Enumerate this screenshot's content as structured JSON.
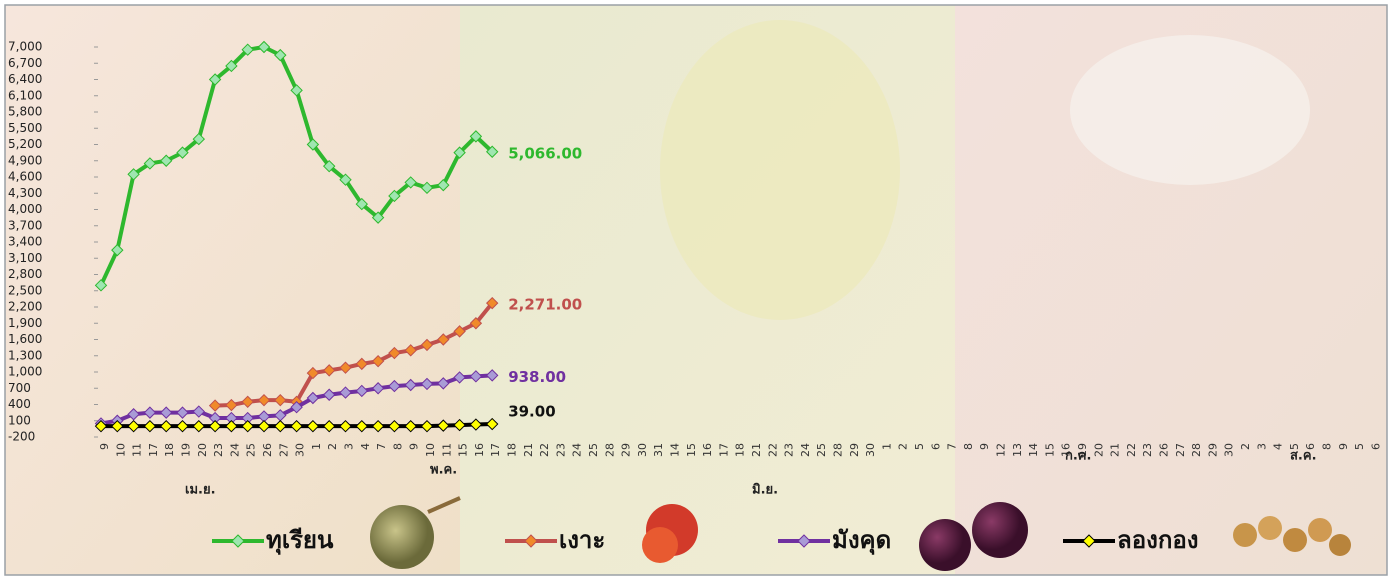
{
  "chart_data": {
    "type": "line",
    "categories": [
      "9",
      "10",
      "11",
      "17",
      "18",
      "19",
      "20",
      "23",
      "24",
      "25",
      "26",
      "27",
      "30",
      "1",
      "2",
      "3",
      "4",
      "7",
      "8",
      "9",
      "10",
      "11",
      "15",
      "16",
      "17",
      "18",
      "21",
      "22",
      "23",
      "24",
      "25",
      "28",
      "29",
      "30",
      "31",
      "14",
      "15",
      "16",
      "17",
      "18",
      "21",
      "22",
      "23",
      "24",
      "25",
      "28",
      "29",
      "30",
      "1",
      "2",
      "5",
      "6",
      "7",
      "8",
      "9",
      "12",
      "13",
      "14",
      "15",
      "16",
      "19",
      "20",
      "21",
      "22",
      "23",
      "26",
      "27",
      "28",
      "29",
      "30",
      "2",
      "3",
      "4",
      "5",
      "6",
      "8",
      "9",
      "5",
      "6"
    ],
    "period_labels": [
      "เม.ย.",
      "พ.ค.",
      "มิ.ย.",
      "ก.ค.",
      "ส.ค."
    ],
    "ylim": [
      -200,
      7000
    ],
    "yticks": [
      -200,
      100,
      400,
      700,
      {
        "value": 1000,
        "label": "1,000"
      },
      {
        "value": 1300,
        "label": "1,300"
      },
      {
        "value": 1600,
        "label": "1,600"
      },
      {
        "value": 1900,
        "label": "1,900"
      },
      {
        "value": 2200,
        "label": "2,200"
      },
      {
        "value": 2500,
        "label": "2,500"
      },
      {
        "value": 2800,
        "label": "2,800"
      },
      {
        "value": 3100,
        "label": "3,100"
      },
      {
        "value": 3400,
        "label": "3,400"
      },
      {
        "value": 3700,
        "label": "3,700"
      },
      {
        "value": 4000,
        "label": "4,000"
      },
      {
        "value": 4300,
        "label": "4,300"
      },
      {
        "value": 4600,
        "label": "4,600"
      },
      {
        "value": 4900,
        "label": "4,900"
      },
      {
        "value": 5200,
        "label": "5,200"
      },
      {
        "value": 5500,
        "label": "5,500"
      },
      {
        "value": 5800,
        "label": "5,800"
      },
      {
        "value": 6100,
        "label": "6,100"
      },
      {
        "value": 6400,
        "label": "6,400"
      },
      {
        "value": 6700,
        "label": "6,700"
      },
      {
        "value": 7000,
        "label": "7,000"
      }
    ],
    "series": [
      {
        "name": "ทุเรียน",
        "color": "#2eb82e",
        "marker_color": "#9fe6b0",
        "values": [
          2600,
          3250,
          4650,
          4850,
          4900,
          5050,
          5300,
          6400,
          6650,
          6950,
          7000,
          6850,
          6200,
          5200,
          4800,
          4550,
          4100,
          3850,
          4250,
          4500,
          4400,
          4450,
          5050,
          5350,
          5066,
          null,
          null,
          null,
          null,
          null,
          null,
          null,
          null,
          null,
          null,
          null,
          null,
          null,
          null,
          null,
          null,
          null,
          null,
          null,
          null,
          null,
          null,
          null,
          null,
          null,
          null,
          null,
          null,
          null,
          null,
          null,
          null,
          null,
          null,
          null,
          null,
          null,
          null,
          null,
          null,
          null,
          null,
          null,
          null,
          null,
          null,
          null,
          null,
          null,
          null,
          null,
          null,
          null,
          null
        ],
        "value_labels": [
          null,
          null,
          null,
          null,
          null,
          null,
          null,
          null,
          null,
          null,
          null,
          null,
          null,
          null,
          null,
          null,
          null,
          null,
          null,
          null,
          null,
          null,
          null,
          null,
          "5,066.00",
          null,
          null,
          null,
          null,
          null,
          null,
          null,
          null,
          null,
          null,
          null,
          null,
          null,
          null,
          null,
          null,
          null,
          null,
          null,
          null,
          null,
          null,
          null,
          null,
          null,
          null,
          null,
          null,
          null,
          null,
          null,
          null,
          null,
          null,
          null,
          null,
          null,
          null,
          null,
          null,
          null,
          null,
          null,
          null,
          null,
          null,
          null,
          null,
          null,
          null,
          null,
          null,
          null,
          null
        ]
      },
      {
        "name": "เงาะ",
        "color": "#c0504d",
        "marker_color": "#f08a2a",
        "values": [
          null,
          null,
          null,
          null,
          null,
          null,
          null,
          380,
          390,
          450,
          480,
          480,
          450,
          980,
          1030,
          1080,
          1150,
          1200,
          1350,
          1400,
          1500,
          1600,
          1750,
          1900,
          2271,
          null,
          null,
          null,
          null,
          null,
          null,
          null,
          null,
          null,
          null,
          null,
          null,
          null,
          null,
          null,
          null,
          null,
          null,
          null,
          null,
          null,
          null,
          null,
          null,
          null,
          null,
          null,
          null,
          null,
          null,
          null,
          null,
          null,
          null,
          null,
          null,
          null,
          null,
          null,
          null,
          null,
          null,
          null,
          null,
          null,
          null,
          null,
          null,
          null,
          null,
          null,
          null,
          null,
          null
        ],
        "value_labels": [
          null,
          null,
          null,
          null,
          null,
          null,
          null,
          null,
          null,
          null,
          null,
          null,
          null,
          null,
          null,
          null,
          null,
          null,
          null,
          null,
          null,
          null,
          null,
          null,
          "2,271.00",
          null,
          null,
          null,
          null,
          null,
          null,
          null,
          null,
          null,
          null,
          null,
          null,
          null,
          null,
          null,
          null,
          null,
          null,
          null,
          null,
          null,
          null,
          null,
          null,
          null,
          null,
          null,
          null,
          null,
          null,
          null,
          null,
          null,
          null,
          null,
          null,
          null,
          null,
          null,
          null,
          null,
          null,
          null,
          null,
          null,
          null,
          null,
          null,
          null,
          null,
          null,
          null,
          null,
          null
        ]
      },
      {
        "name": "มังคุด",
        "color": "#7030a0",
        "marker_color": "#a99bd6",
        "values": [
          50,
          100,
          220,
          250,
          250,
          250,
          270,
          150,
          150,
          150,
          180,
          200,
          350,
          520,
          580,
          620,
          650,
          700,
          740,
          760,
          780,
          790,
          900,
          920,
          938,
          null,
          null,
          null,
          null,
          null,
          null,
          null,
          null,
          null,
          null,
          null,
          null,
          null,
          null,
          null,
          null,
          null,
          null,
          null,
          null,
          null,
          null,
          null,
          null,
          null,
          null,
          null,
          null,
          null,
          null,
          null,
          null,
          null,
          null,
          null,
          null,
          null,
          null,
          null,
          null,
          null,
          null,
          null,
          null,
          null,
          null,
          null,
          null,
          null,
          null,
          null,
          null,
          null,
          null
        ],
        "value_labels": [
          null,
          null,
          null,
          null,
          null,
          null,
          null,
          null,
          null,
          null,
          null,
          null,
          null,
          null,
          null,
          null,
          null,
          null,
          null,
          null,
          null,
          null,
          null,
          null,
          "938.00",
          null,
          null,
          null,
          null,
          null,
          null,
          null,
          null,
          null,
          null,
          null,
          null,
          null,
          null,
          null,
          null,
          null,
          null,
          null,
          null,
          null,
          null,
          null,
          null,
          null,
          null,
          null,
          null,
          null,
          null,
          null,
          null,
          null,
          null,
          null,
          null,
          null,
          null,
          null,
          null,
          null,
          null,
          null,
          null,
          null,
          null,
          null,
          null,
          null,
          null,
          null,
          null,
          null,
          null
        ]
      },
      {
        "name": "ลองกอง",
        "color": "#000000",
        "marker_color": "#ffff00",
        "values": [
          0,
          0,
          0,
          0,
          0,
          0,
          0,
          0,
          0,
          0,
          0,
          0,
          0,
          0,
          0,
          0,
          0,
          0,
          0,
          0,
          0,
          10,
          20,
          30,
          39,
          null,
          null,
          null,
          null,
          null,
          null,
          null,
          null,
          null,
          null,
          null,
          null,
          null,
          null,
          null,
          null,
          null,
          null,
          null,
          null,
          null,
          null,
          null,
          null,
          null,
          null,
          null,
          null,
          null,
          null,
          null,
          null,
          null,
          null,
          null,
          null,
          null,
          null,
          null,
          null,
          null,
          null,
          null,
          null,
          null,
          null,
          null,
          null,
          null,
          null,
          null,
          null,
          null,
          null
        ],
        "value_labels": [
          null,
          null,
          null,
          null,
          null,
          null,
          null,
          null,
          null,
          null,
          null,
          null,
          null,
          null,
          null,
          null,
          null,
          null,
          null,
          null,
          null,
          null,
          null,
          null,
          "39.00",
          null,
          null,
          null,
          null,
          null,
          null,
          null,
          null,
          null,
          null,
          null,
          null,
          null,
          null,
          null,
          null,
          null,
          null,
          null,
          null,
          null,
          null,
          null,
          null,
          null,
          null,
          null,
          null,
          null,
          null,
          null,
          null,
          null,
          null,
          null,
          null,
          null,
          null,
          null,
          null,
          null,
          null,
          null,
          null,
          null,
          null,
          null,
          null,
          null,
          null,
          null,
          null,
          null,
          null
        ]
      }
    ]
  }
}
